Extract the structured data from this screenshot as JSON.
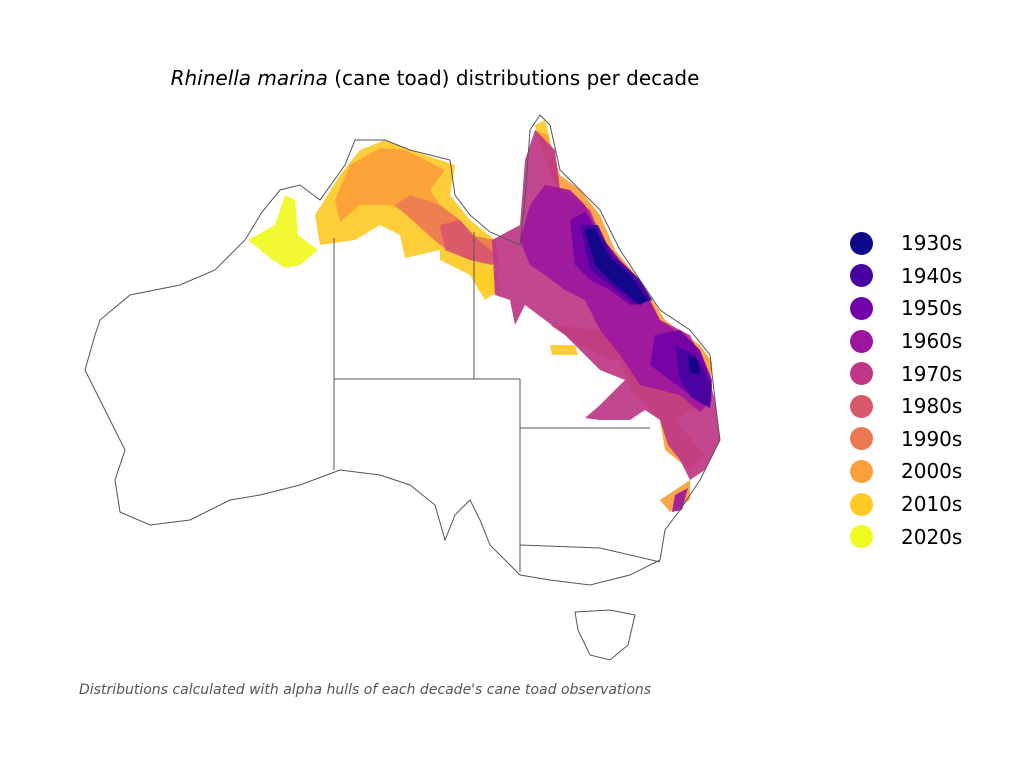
{
  "title": {
    "species": "Rhinella marina",
    "rest": " (cane toad) distributions per decade"
  },
  "caption": "Distributions calculated with alpha hulls of each decade's cane toad observations",
  "legend": [
    {
      "label": "1930s",
      "color": "#0d0887"
    },
    {
      "label": "1940s",
      "color": "#47039f"
    },
    {
      "label": "1950s",
      "color": "#7301a8"
    },
    {
      "label": "1960s",
      "color": "#9c179e"
    },
    {
      "label": "1970s",
      "color": "#bd3786"
    },
    {
      "label": "1980s",
      "color": "#d8576b"
    },
    {
      "label": "1990s",
      "color": "#ed7953"
    },
    {
      "label": "2000s",
      "color": "#fb9f3a"
    },
    {
      "label": "2010s",
      "color": "#fdca26"
    },
    {
      "label": "2020s",
      "color": "#f0f921"
    }
  ],
  "map": {
    "region": "Australia",
    "outline_color": "#555555"
  }
}
